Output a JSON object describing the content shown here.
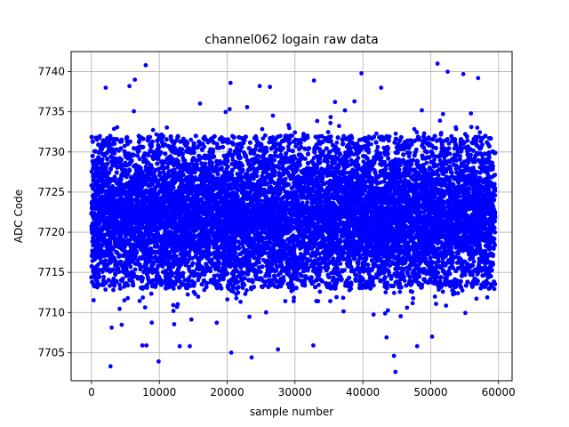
{
  "chart_data": {
    "type": "scatter",
    "title": "channel062 logain raw data",
    "xlabel": "sample number",
    "ylabel": "ADC Code",
    "xlim": [
      -3000,
      62000
    ],
    "ylim": [
      7701.5,
      7742.5
    ],
    "xticks": [
      0,
      10000,
      20000,
      30000,
      40000,
      50000,
      60000
    ],
    "xtick_labels": [
      "0",
      "10000",
      "20000",
      "30000",
      "40000",
      "50000",
      "60000"
    ],
    "yticks": [
      7705,
      7710,
      7715,
      7720,
      7725,
      7730,
      7735,
      7740
    ],
    "ytick_labels": [
      "7705",
      "7710",
      "7715",
      "7720",
      "7725",
      "7730",
      "7735",
      "7740"
    ],
    "grid": true,
    "marker_color": "#0000ff",
    "series": [
      {
        "n_samples": 60000,
        "x_range": [
          0,
          59500
        ],
        "center": 7722,
        "spread_sd": 4.2,
        "outliers": [
          {
            "x": 8000,
            "y": 7740.8
          },
          {
            "x": 51000,
            "y": 7741.0
          },
          {
            "x": 39800,
            "y": 7739.8
          },
          {
            "x": 52500,
            "y": 7740.0
          },
          {
            "x": 54800,
            "y": 7739.7
          },
          {
            "x": 57000,
            "y": 7739.2
          },
          {
            "x": 32800,
            "y": 7738.9
          },
          {
            "x": 20500,
            "y": 7738.6
          },
          {
            "x": 2100,
            "y": 7738.0
          },
          {
            "x": 5600,
            "y": 7738.2
          },
          {
            "x": 6400,
            "y": 7739.0
          },
          {
            "x": 24800,
            "y": 7738.2
          },
          {
            "x": 26300,
            "y": 7738.1
          },
          {
            "x": 42700,
            "y": 7738.0
          },
          {
            "x": 2800,
            "y": 7703.3
          },
          {
            "x": 9900,
            "y": 7703.9
          },
          {
            "x": 44800,
            "y": 7702.6
          },
          {
            "x": 44600,
            "y": 7704.6
          },
          {
            "x": 23600,
            "y": 7704.4
          },
          {
            "x": 20600,
            "y": 7705.0
          },
          {
            "x": 27500,
            "y": 7705.4
          },
          {
            "x": 7500,
            "y": 7705.9
          },
          {
            "x": 8100,
            "y": 7705.9
          },
          {
            "x": 13000,
            "y": 7705.8
          },
          {
            "x": 14500,
            "y": 7705.8
          },
          {
            "x": 48000,
            "y": 7705.8
          },
          {
            "x": 50200,
            "y": 7707.0
          },
          {
            "x": 43500,
            "y": 7706.9
          },
          {
            "x": 32700,
            "y": 7705.9
          }
        ]
      }
    ]
  }
}
